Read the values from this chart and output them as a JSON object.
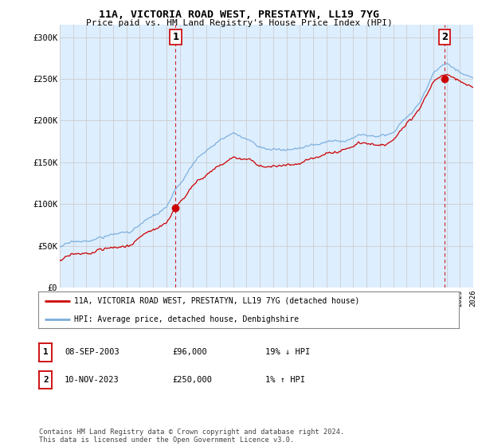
{
  "title": "11A, VICTORIA ROAD WEST, PRESTATYN, LL19 7YG",
  "subtitle": "Price paid vs. HM Land Registry's House Price Index (HPI)",
  "ylabel_ticks": [
    "£0",
    "£50K",
    "£100K",
    "£150K",
    "£200K",
    "£250K",
    "£300K"
  ],
  "ytick_values": [
    0,
    50000,
    100000,
    150000,
    200000,
    250000,
    300000
  ],
  "ylim": [
    0,
    315000
  ],
  "xlim_start": 1995.25,
  "xlim_end": 2026.0,
  "sale1_date": 2003.69,
  "sale1_price": 96000,
  "sale2_date": 2023.87,
  "sale2_price": 250000,
  "sale_color": "#cc0000",
  "hpi_color": "#7aaddb",
  "vline_color": "#cc0000",
  "grid_color": "#cccccc",
  "background_color": "#ffffff",
  "chart_bg": "#ddeeff",
  "legend_line1": "11A, VICTORIA ROAD WEST, PRESTATYN, LL19 7YG (detached house)",
  "legend_line2": "HPI: Average price, detached house, Denbighshire",
  "table_row1": [
    "1",
    "08-SEP-2003",
    "£96,000",
    "19% ↓ HPI"
  ],
  "table_row2": [
    "2",
    "10-NOV-2023",
    "£250,000",
    "1% ↑ HPI"
  ],
  "footer": "Contains HM Land Registry data © Crown copyright and database right 2024.\nThis data is licensed under the Open Government Licence v3.0."
}
